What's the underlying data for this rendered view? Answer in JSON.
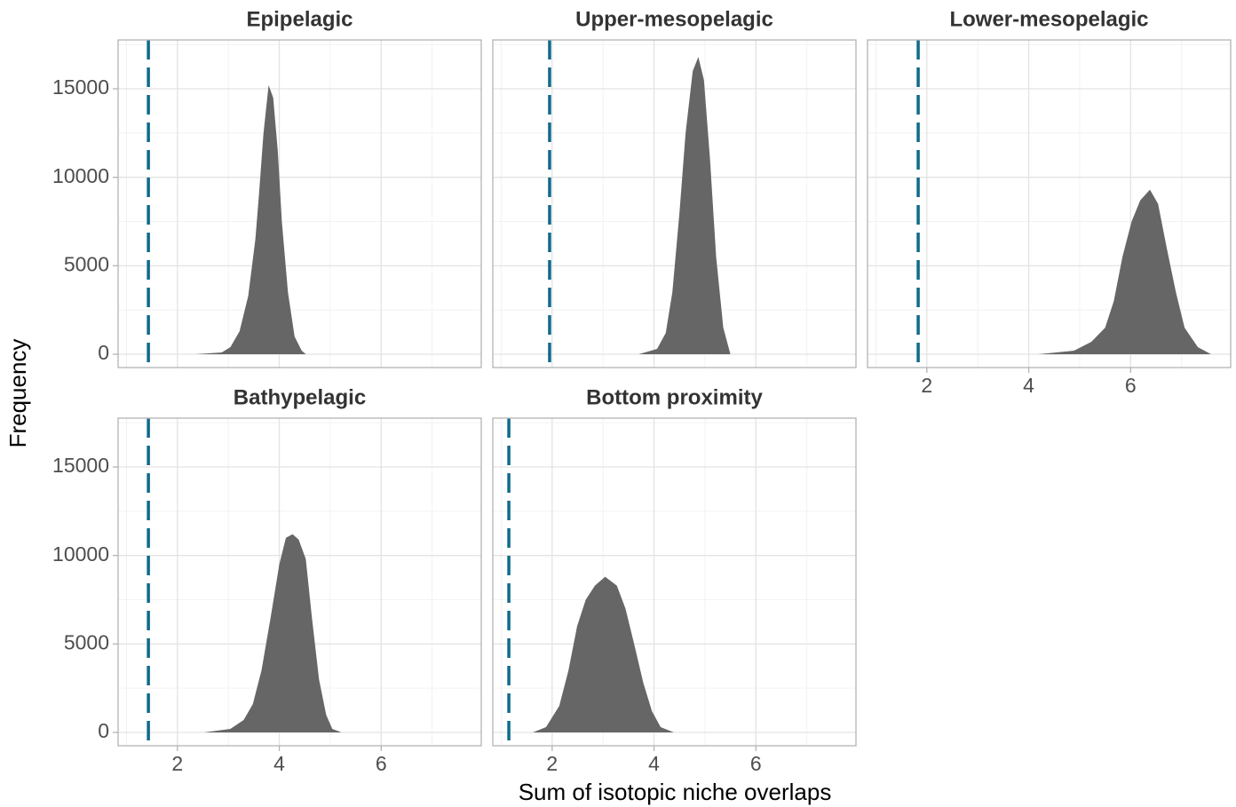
{
  "axis_titles": {
    "x": "Sum of isotopic niche overlaps",
    "y": "Frequency"
  },
  "chart_data": [
    {
      "type": "area",
      "title": "Epipelagic",
      "color": "#666666",
      "vline": 1.43,
      "vline_color": "#0f6a8b",
      "x": [
        2.35,
        2.87,
        3.04,
        3.22,
        3.39,
        3.53,
        3.6,
        3.69,
        3.79,
        3.88,
        3.97,
        4.05,
        4.17,
        4.3,
        4.44,
        4.52
      ],
      "values": [
        0,
        100,
        400,
        1300,
        3300,
        6500,
        9000,
        12500,
        15200,
        14500,
        11500,
        7500,
        3500,
        1000,
        200,
        0
      ],
      "xlim": [
        0.835,
        7.965
      ],
      "ylim": [
        -752,
        17760
      ],
      "xticks": [
        2,
        4,
        6
      ],
      "yticks": [
        0,
        5000,
        10000,
        15000
      ],
      "xminor": [
        1,
        3,
        5,
        7
      ],
      "yminor": [
        2500,
        7500,
        12500,
        17500
      ],
      "grid": true,
      "show_xtick_labels": false,
      "show_ytick_labels": true
    },
    {
      "type": "area",
      "title": "Upper-mesopelagic",
      "color": "#666666",
      "vline": 1.95,
      "vline_color": "#0f6a8b",
      "x": [
        3.7,
        4.06,
        4.23,
        4.36,
        4.5,
        4.62,
        4.76,
        4.87,
        4.98,
        5.1,
        5.22,
        5.36,
        5.5
      ],
      "values": [
        0,
        300,
        1200,
        3500,
        8000,
        12500,
        16000,
        16800,
        15500,
        11000,
        5500,
        1500,
        0
      ],
      "xlim": [
        0.835,
        7.965
      ],
      "ylim": [
        -752,
        17760
      ],
      "xticks": [
        2,
        4,
        6
      ],
      "yticks": [
        0,
        5000,
        10000,
        15000
      ],
      "xminor": [
        1,
        3,
        5,
        7
      ],
      "yminor": [
        2500,
        7500,
        12500,
        17500
      ],
      "grid": true,
      "show_xtick_labels": false,
      "show_ytick_labels": false
    },
    {
      "type": "area",
      "title": "Lower-mesopelagic",
      "color": "#666666",
      "vline": 1.83,
      "vline_color": "#0f6a8b",
      "x": [
        4.19,
        4.89,
        5.23,
        5.5,
        5.67,
        5.84,
        6.02,
        6.19,
        6.38,
        6.54,
        6.71,
        6.89,
        7.06,
        7.32,
        7.58
      ],
      "values": [
        0,
        200,
        700,
        1500,
        3000,
        5500,
        7500,
        8700,
        9300,
        8500,
        6000,
        3500,
        1500,
        400,
        0
      ],
      "xlim": [
        0.835,
        7.965
      ],
      "ylim": [
        -752,
        17760
      ],
      "xticks": [
        2,
        4,
        6
      ],
      "yticks": [
        0,
        5000,
        10000,
        15000
      ],
      "xminor": [
        1,
        3,
        5,
        7
      ],
      "yminor": [
        2500,
        7500,
        12500,
        17500
      ],
      "grid": true,
      "show_xtick_labels": true,
      "show_ytick_labels": false
    },
    {
      "type": "area",
      "title": "Bathypelagic",
      "color": "#666666",
      "vline": 1.43,
      "vline_color": "#0f6a8b",
      "x": [
        2.52,
        3.04,
        3.3,
        3.48,
        3.65,
        3.83,
        4.0,
        4.13,
        4.26,
        4.38,
        4.52,
        4.64,
        4.78,
        4.92,
        5.04,
        5.22
      ],
      "values": [
        0,
        200,
        700,
        1600,
        3500,
        6500,
        9500,
        11000,
        11200,
        10900,
        9800,
        6500,
        3000,
        1000,
        200,
        0
      ],
      "xlim": [
        0.835,
        7.965
      ],
      "ylim": [
        -752,
        17760
      ],
      "xticks": [
        2,
        4,
        6
      ],
      "yticks": [
        0,
        5000,
        10000,
        15000
      ],
      "xminor": [
        1,
        3,
        5,
        7
      ],
      "yminor": [
        2500,
        7500,
        12500,
        17500
      ],
      "grid": true,
      "show_xtick_labels": true,
      "show_ytick_labels": true
    },
    {
      "type": "area",
      "title": "Bottom proximity",
      "color": "#666666",
      "vline": 1.15,
      "vline_color": "#0f6a8b",
      "x": [
        1.62,
        1.88,
        2.14,
        2.32,
        2.49,
        2.66,
        2.84,
        3.04,
        3.27,
        3.44,
        3.61,
        3.79,
        3.96,
        4.13,
        4.39
      ],
      "values": [
        0,
        300,
        1500,
        3500,
        6000,
        7500,
        8300,
        8800,
        8300,
        7000,
        5000,
        2800,
        1200,
        300,
        0
      ],
      "xlim": [
        0.835,
        7.965
      ],
      "ylim": [
        -752,
        17760
      ],
      "xticks": [
        2,
        4,
        6
      ],
      "yticks": [
        0,
        5000,
        10000,
        15000
      ],
      "xminor": [
        1,
        3,
        5,
        7
      ],
      "yminor": [
        2500,
        7500,
        12500,
        17500
      ],
      "grid": true,
      "show_xtick_labels": true,
      "show_ytick_labels": false
    }
  ]
}
